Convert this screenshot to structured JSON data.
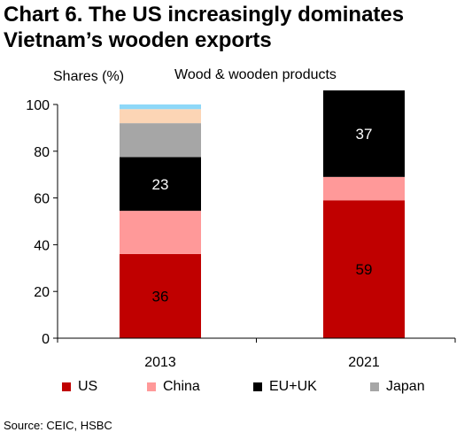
{
  "header": {
    "title_line1": "Chart 6. The US increasingly dominates",
    "title_line2": "Vietnam’s wooden exports"
  },
  "source": "Source:  CEIC, HSBC",
  "colors": {
    "US": "#c00000",
    "China": "#ff9999",
    "EU+UK": "#000000",
    "Japan": "#a6a6a6",
    "Other1": "#fcd5b5",
    "Other2": "#8ed8f8"
  },
  "chart_data": {
    "type": "bar",
    "stacked": true,
    "title": "Wood  & wooden products",
    "ylabel": "Shares (%)",
    "xlabel": "",
    "ylim": [
      0,
      100
    ],
    "yticks": [
      "0",
      "20",
      "40",
      "60",
      "80",
      "100"
    ],
    "categories": [
      "2013",
      "2021"
    ],
    "series": [
      {
        "name": "US",
        "values": [
          36,
          59
        ],
        "labels": [
          "36",
          "59"
        ]
      },
      {
        "name": "China",
        "values": [
          18.5,
          10
        ],
        "labels": [
          "",
          ""
        ]
      },
      {
        "name": "EU+UK",
        "values": [
          23,
          37
        ],
        "labels": [
          "23",
          "37"
        ]
      },
      {
        "name": "Japan",
        "values": [
          14.5,
          0
        ],
        "labels": [
          "",
          ""
        ]
      },
      {
        "values": [
          6,
          0
        ],
        "labels": [
          "",
          ""
        ]
      },
      {
        "values": [
          2,
          0
        ],
        "labels": [
          "",
          ""
        ]
      }
    ],
    "legend": [
      "US",
      "China",
      "EU+UK",
      "Japan"
    ],
    "legend_position": "bottom"
  }
}
